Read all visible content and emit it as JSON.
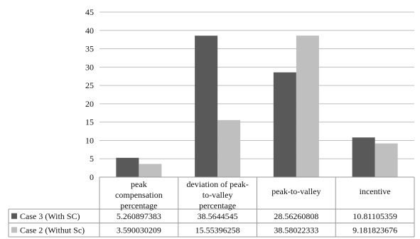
{
  "chart_data": {
    "type": "bar",
    "title": "",
    "xlabel": "",
    "ylabel": "",
    "ylim": [
      0,
      45
    ],
    "yticks": [
      0,
      5,
      10,
      15,
      20,
      25,
      30,
      35,
      40,
      45
    ],
    "grid": true,
    "legend_placement": "data-table-left",
    "categories": [
      [
        "peak",
        "compensation",
        "percentage"
      ],
      [
        "deviation of peak-",
        "to-valley",
        "percentage"
      ],
      [
        "peak-to-valley"
      ],
      [
        "incentive"
      ]
    ],
    "series": [
      {
        "name": "Case 3 (With SC)",
        "color": "#595959",
        "values": [
          5.260897383,
          38.5644545,
          28.56260808,
          10.81105359
        ],
        "table_values": [
          "5.260897383",
          "38.5644545",
          "28.56260808",
          "10.81105359"
        ]
      },
      {
        "name": "Case 2 (Withut Sc)",
        "color": "#bfbfbf",
        "values": [
          3.590030209,
          15.55396258,
          38.58022333,
          9.181823676
        ],
        "table_values": [
          "3.590030209",
          "15.55396258",
          "38.58022333",
          "9.181823676"
        ]
      }
    ]
  }
}
